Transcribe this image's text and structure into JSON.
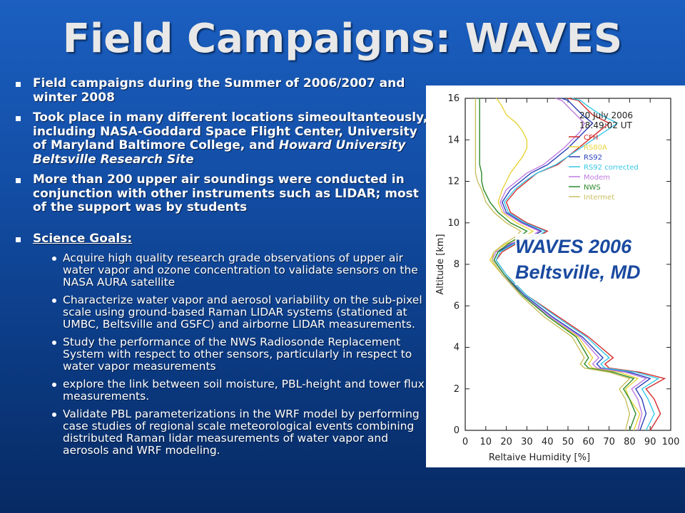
{
  "slide": {
    "title": "Field  Campaigns: WAVES",
    "bullets": [
      {
        "text": "Field campaigns during the Summer of 2006/2007 and winter 2008"
      },
      {
        "text_a": "Took place in many different locations simeoultanteously, including NASA-Goddard Space Flight Center, University of Maryland Baltimore College, and ",
        "text_b": "Howard University Beltsville Research Site"
      },
      {
        "text": "More than 200 upper air soundings were conducted in conjunction with other instruments such as LIDAR; most of the support was by students"
      },
      {
        "text": "Science Goals:"
      }
    ],
    "goals": [
      "Acquire high quality research grade observations of upper air water vapor and ozone concentration to validate sensors on the NASA AURA satellite",
      "Characterize water vapor and aerosol variability on the sub-pixel scale using ground-based Raman LIDAR systems (stationed at UMBC, Beltsville and GSFC) and airborne LIDAR measurements.",
      "Study the performance of the NWS Radiosonde Replacement System with respect to other sensors, particularly in respect to water vapor measurements",
      "explore the link between soil moisture, PBL-height and tower flux measurements.",
      "Validate PBL parameterizations in the WRF model by performing case studies of regional scale meteorological events combining distributed Raman lidar measurements of water vapor and aerosols and WRF modeling."
    ],
    "overlay": {
      "line1": "WAVES 2006",
      "line2": "Beltsville, MD"
    }
  },
  "chart_data": {
    "type": "line",
    "date": "20 July 2006",
    "time": "18:49:02 UT",
    "xlabel": "Reltaive Humidity [%]",
    "ylabel": "Altitude [km]",
    "xlim": [
      0,
      100
    ],
    "ylim": [
      0,
      16
    ],
    "x_ticks": [
      "0",
      "10",
      "20",
      "30",
      "40",
      "50",
      "60",
      "70",
      "80",
      "90",
      "100"
    ],
    "y_ticks": [
      "0",
      "2",
      "4",
      "6",
      "8",
      "10",
      "12",
      "14",
      "16"
    ],
    "series": [
      {
        "name": "CFH",
        "color": "#d42a2a",
        "x": [
          90,
          95,
          92,
          88,
          97,
          85,
          70,
          68,
          72,
          60,
          45,
          30,
          20,
          15,
          18,
          25,
          35,
          40,
          30,
          22,
          20,
          25,
          30,
          35,
          45,
          50,
          55,
          60,
          65,
          70,
          62,
          58,
          55,
          50
        ],
        "y": [
          0,
          0.8,
          1.5,
          2.0,
          2.5,
          2.8,
          3.0,
          3.2,
          3.5,
          4.5,
          5.5,
          6.5,
          7.5,
          8.2,
          8.6,
          9.0,
          9.3,
          9.6,
          10.0,
          10.5,
          11.0,
          11.6,
          12.0,
          12.4,
          12.8,
          13.2,
          13.6,
          14.0,
          14.4,
          14.8,
          15.2,
          15.6,
          15.9,
          16.0
        ]
      },
      {
        "name": "RS80A",
        "color": "#e8d43a",
        "x": [
          82,
          85,
          80,
          78,
          84,
          75,
          62,
          60,
          62,
          55,
          40,
          28,
          18,
          12,
          14,
          20,
          28,
          33,
          25,
          18,
          16,
          18,
          20,
          22,
          25,
          28,
          30,
          30,
          28,
          25,
          20,
          18,
          16,
          15
        ],
        "y": [
          0,
          0.8,
          1.5,
          2.0,
          2.5,
          2.8,
          3.0,
          3.2,
          3.5,
          4.5,
          5.5,
          6.5,
          7.5,
          8.2,
          8.6,
          9.0,
          9.3,
          9.6,
          10.0,
          10.5,
          11.0,
          11.6,
          12.0,
          12.4,
          12.8,
          13.2,
          13.6,
          14.0,
          14.4,
          14.8,
          15.2,
          15.6,
          15.9,
          16.0
        ]
      },
      {
        "name": "RS92",
        "color": "#2a3fb8",
        "x": [
          85,
          88,
          86,
          83,
          90,
          80,
          66,
          64,
          67,
          57,
          42,
          29,
          19,
          14,
          16,
          23,
          32,
          37,
          28,
          20,
          18,
          22,
          27,
          32,
          40,
          45,
          50,
          54,
          58,
          62,
          57,
          53,
          50,
          47
        ],
        "y": [
          0,
          0.8,
          1.5,
          2.0,
          2.5,
          2.8,
          3.0,
          3.2,
          3.5,
          4.5,
          5.5,
          6.5,
          7.5,
          8.2,
          8.6,
          9.0,
          9.3,
          9.6,
          10.0,
          10.5,
          11.0,
          11.6,
          12.0,
          12.4,
          12.8,
          13.2,
          13.6,
          14.0,
          14.4,
          14.8,
          15.2,
          15.6,
          15.9,
          16.0
        ]
      },
      {
        "name": "RS92 corrected",
        "color": "#36c8e8",
        "x": [
          88,
          92,
          89,
          86,
          94,
          83,
          68,
          66,
          70,
          59,
          44,
          30,
          20,
          15,
          17,
          24,
          34,
          39,
          29,
          21,
          19,
          24,
          29,
          35,
          44,
          50,
          56,
          62,
          68,
          74,
          66,
          60,
          56,
          52
        ],
        "y": [
          0,
          0.8,
          1.5,
          2.0,
          2.5,
          2.8,
          3.0,
          3.2,
          3.5,
          4.5,
          5.5,
          6.5,
          7.5,
          8.2,
          8.6,
          9.0,
          9.3,
          9.6,
          10.0,
          10.5,
          11.0,
          11.6,
          12.0,
          12.4,
          12.8,
          13.2,
          13.6,
          14.0,
          14.4,
          14.8,
          15.2,
          15.6,
          15.9,
          16.0
        ]
      },
      {
        "name": "Modem",
        "color": "#c07ae0",
        "x": [
          84,
          86,
          84,
          81,
          88,
          78,
          64,
          62,
          65,
          56,
          41,
          28,
          18,
          13,
          15,
          22,
          31,
          36,
          27,
          19,
          17,
          20,
          25,
          30,
          38,
          43,
          48,
          52,
          56,
          58,
          54,
          50,
          47,
          44
        ],
        "y": [
          0,
          0.8,
          1.5,
          2.0,
          2.5,
          2.8,
          3.0,
          3.2,
          3.5,
          4.5,
          5.5,
          6.5,
          7.5,
          8.2,
          8.6,
          9.0,
          9.3,
          9.6,
          10.0,
          10.5,
          11.0,
          11.6,
          12.0,
          12.4,
          12.8,
          13.2,
          13.6,
          14.0,
          14.4,
          14.8,
          15.2,
          15.6,
          15.9,
          16.0
        ]
      },
      {
        "name": "NWS",
        "color": "#2a8a2a",
        "x": [
          80,
          83,
          80,
          77,
          82,
          72,
          60,
          58,
          60,
          54,
          40,
          28,
          19,
          14,
          16,
          21,
          26,
          30,
          22,
          16,
          12,
          9,
          8,
          8,
          7,
          7,
          7,
          7,
          7,
          7,
          7,
          7,
          7,
          7
        ],
        "y": [
          0,
          0.8,
          1.5,
          2.0,
          2.5,
          2.8,
          3.0,
          3.2,
          3.5,
          4.5,
          5.5,
          6.5,
          7.5,
          8.2,
          8.6,
          9.0,
          9.3,
          9.6,
          10.0,
          10.5,
          11.0,
          11.6,
          12.0,
          12.4,
          12.8,
          13.2,
          13.6,
          14.0,
          14.4,
          14.8,
          15.2,
          15.6,
          15.9,
          16.0
        ]
      },
      {
        "name": "Intermet",
        "color": "#c8c060",
        "x": [
          78,
          80,
          78,
          75,
          80,
          70,
          58,
          56,
          58,
          52,
          38,
          27,
          18,
          13,
          14,
          19,
          24,
          27,
          20,
          14,
          10,
          8,
          6,
          5,
          5,
          5,
          5,
          5,
          5,
          5,
          5,
          5,
          5,
          5
        ],
        "y": [
          0,
          0.8,
          1.5,
          2.0,
          2.5,
          2.8,
          3.0,
          3.2,
          3.5,
          4.5,
          5.5,
          6.5,
          7.5,
          8.2,
          8.6,
          9.0,
          9.3,
          9.6,
          10.0,
          10.5,
          11.0,
          11.6,
          12.0,
          12.4,
          12.8,
          13.2,
          13.6,
          14.0,
          14.4,
          14.8,
          15.2,
          15.6,
          15.9,
          16.0
        ]
      }
    ]
  }
}
